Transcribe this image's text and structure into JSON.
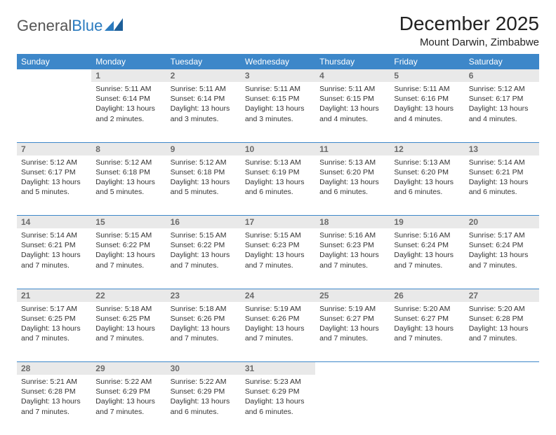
{
  "logo": {
    "text1": "General",
    "text2": "Blue"
  },
  "title": "December 2025",
  "location": "Mount Darwin, Zimbabwe",
  "colors": {
    "header_bg": "#3d87c9",
    "header_fg": "#ffffff",
    "daynum_bg": "#e9e9e9",
    "daynum_fg": "#6b6b6b",
    "rule": "#3d87c9",
    "text": "#333333"
  },
  "weekdays": [
    "Sunday",
    "Monday",
    "Tuesday",
    "Wednesday",
    "Thursday",
    "Friday",
    "Saturday"
  ],
  "weeks": [
    {
      "nums": [
        "",
        "1",
        "2",
        "3",
        "4",
        "5",
        "6"
      ],
      "cells": [
        null,
        {
          "sunrise": "5:11 AM",
          "sunset": "6:14 PM",
          "daylight": "13 hours and 2 minutes."
        },
        {
          "sunrise": "5:11 AM",
          "sunset": "6:14 PM",
          "daylight": "13 hours and 3 minutes."
        },
        {
          "sunrise": "5:11 AM",
          "sunset": "6:15 PM",
          "daylight": "13 hours and 3 minutes."
        },
        {
          "sunrise": "5:11 AM",
          "sunset": "6:15 PM",
          "daylight": "13 hours and 4 minutes."
        },
        {
          "sunrise": "5:11 AM",
          "sunset": "6:16 PM",
          "daylight": "13 hours and 4 minutes."
        },
        {
          "sunrise": "5:12 AM",
          "sunset": "6:17 PM",
          "daylight": "13 hours and 4 minutes."
        }
      ]
    },
    {
      "nums": [
        "7",
        "8",
        "9",
        "10",
        "11",
        "12",
        "13"
      ],
      "cells": [
        {
          "sunrise": "5:12 AM",
          "sunset": "6:17 PM",
          "daylight": "13 hours and 5 minutes."
        },
        {
          "sunrise": "5:12 AM",
          "sunset": "6:18 PM",
          "daylight": "13 hours and 5 minutes."
        },
        {
          "sunrise": "5:12 AM",
          "sunset": "6:18 PM",
          "daylight": "13 hours and 5 minutes."
        },
        {
          "sunrise": "5:13 AM",
          "sunset": "6:19 PM",
          "daylight": "13 hours and 6 minutes."
        },
        {
          "sunrise": "5:13 AM",
          "sunset": "6:20 PM",
          "daylight": "13 hours and 6 minutes."
        },
        {
          "sunrise": "5:13 AM",
          "sunset": "6:20 PM",
          "daylight": "13 hours and 6 minutes."
        },
        {
          "sunrise": "5:14 AM",
          "sunset": "6:21 PM",
          "daylight": "13 hours and 6 minutes."
        }
      ]
    },
    {
      "nums": [
        "14",
        "15",
        "16",
        "17",
        "18",
        "19",
        "20"
      ],
      "cells": [
        {
          "sunrise": "5:14 AM",
          "sunset": "6:21 PM",
          "daylight": "13 hours and 7 minutes."
        },
        {
          "sunrise": "5:15 AM",
          "sunset": "6:22 PM",
          "daylight": "13 hours and 7 minutes."
        },
        {
          "sunrise": "5:15 AM",
          "sunset": "6:22 PM",
          "daylight": "13 hours and 7 minutes."
        },
        {
          "sunrise": "5:15 AM",
          "sunset": "6:23 PM",
          "daylight": "13 hours and 7 minutes."
        },
        {
          "sunrise": "5:16 AM",
          "sunset": "6:23 PM",
          "daylight": "13 hours and 7 minutes."
        },
        {
          "sunrise": "5:16 AM",
          "sunset": "6:24 PM",
          "daylight": "13 hours and 7 minutes."
        },
        {
          "sunrise": "5:17 AM",
          "sunset": "6:24 PM",
          "daylight": "13 hours and 7 minutes."
        }
      ]
    },
    {
      "nums": [
        "21",
        "22",
        "23",
        "24",
        "25",
        "26",
        "27"
      ],
      "cells": [
        {
          "sunrise": "5:17 AM",
          "sunset": "6:25 PM",
          "daylight": "13 hours and 7 minutes."
        },
        {
          "sunrise": "5:18 AM",
          "sunset": "6:25 PM",
          "daylight": "13 hours and 7 minutes."
        },
        {
          "sunrise": "5:18 AM",
          "sunset": "6:26 PM",
          "daylight": "13 hours and 7 minutes."
        },
        {
          "sunrise": "5:19 AM",
          "sunset": "6:26 PM",
          "daylight": "13 hours and 7 minutes."
        },
        {
          "sunrise": "5:19 AM",
          "sunset": "6:27 PM",
          "daylight": "13 hours and 7 minutes."
        },
        {
          "sunrise": "5:20 AM",
          "sunset": "6:27 PM",
          "daylight": "13 hours and 7 minutes."
        },
        {
          "sunrise": "5:20 AM",
          "sunset": "6:28 PM",
          "daylight": "13 hours and 7 minutes."
        }
      ]
    },
    {
      "nums": [
        "28",
        "29",
        "30",
        "31",
        "",
        "",
        ""
      ],
      "cells": [
        {
          "sunrise": "5:21 AM",
          "sunset": "6:28 PM",
          "daylight": "13 hours and 7 minutes."
        },
        {
          "sunrise": "5:22 AM",
          "sunset": "6:29 PM",
          "daylight": "13 hours and 7 minutes."
        },
        {
          "sunrise": "5:22 AM",
          "sunset": "6:29 PM",
          "daylight": "13 hours and 6 minutes."
        },
        {
          "sunrise": "5:23 AM",
          "sunset": "6:29 PM",
          "daylight": "13 hours and 6 minutes."
        },
        null,
        null,
        null
      ]
    }
  ],
  "labels": {
    "sunrise": "Sunrise: ",
    "sunset": "Sunset: ",
    "daylight": "Daylight: "
  }
}
